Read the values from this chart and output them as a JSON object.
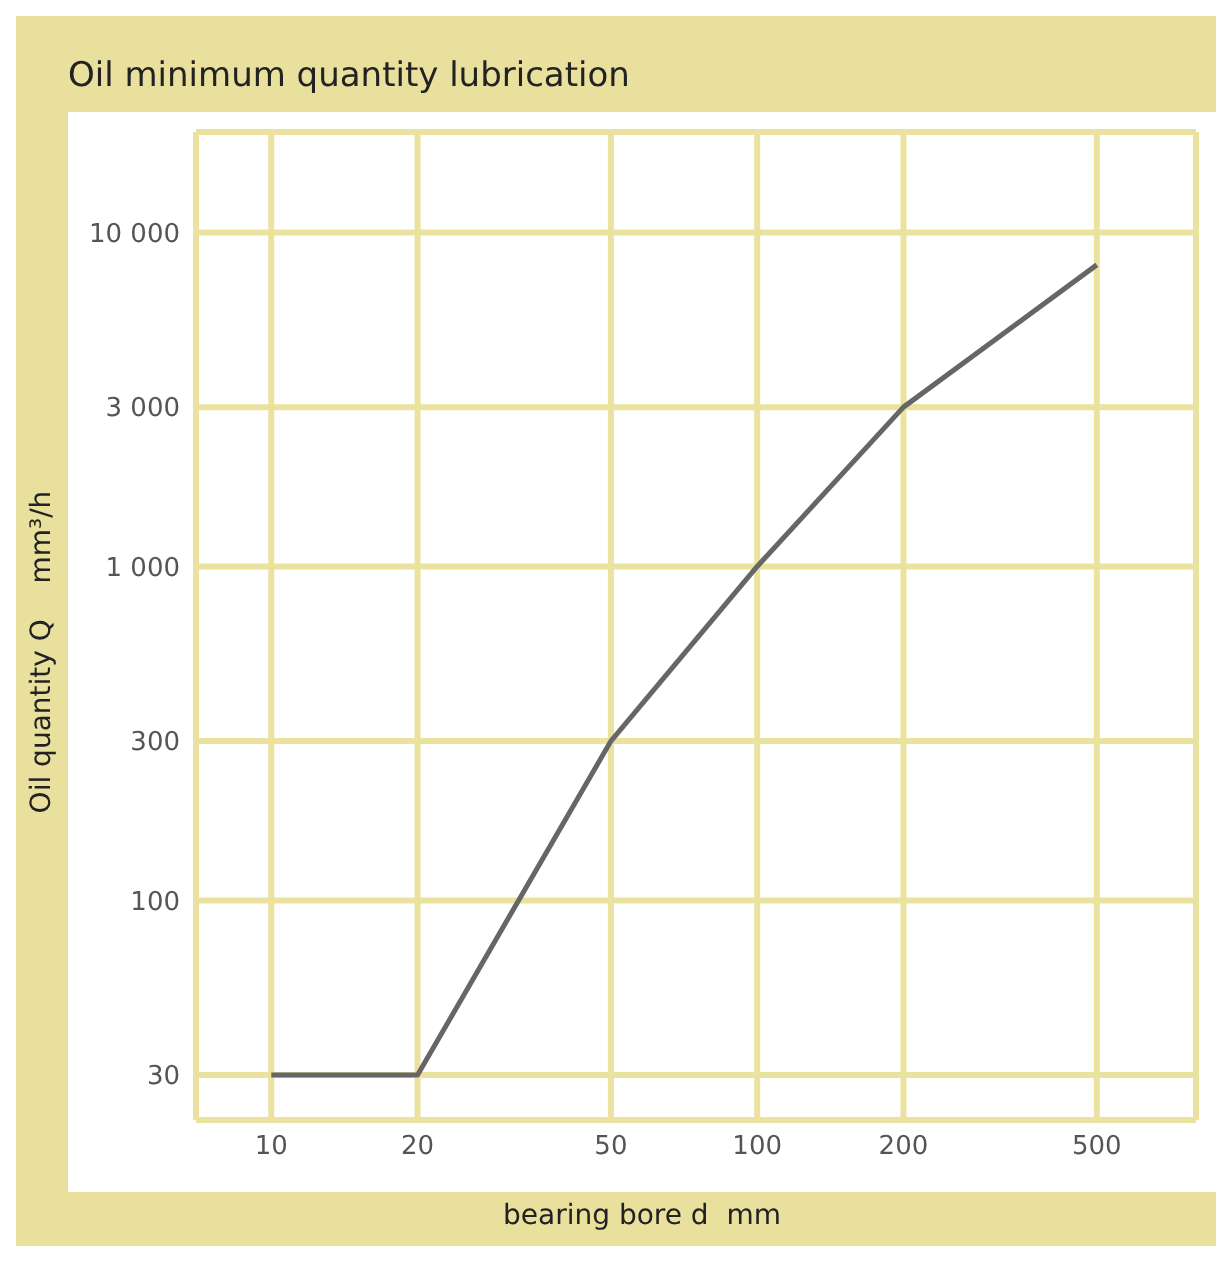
{
  "chart_data": {
    "type": "line",
    "title": "Oil minimum quantity lubrication",
    "xlabel": "bearing bore d  mm",
    "ylabel": "Oil quantity Q    mm³/h",
    "x": [
      10,
      20,
      50,
      100,
      200,
      500
    ],
    "series": [
      {
        "color": "#666666",
        "values": [
          30,
          30,
          300,
          1000,
          3000,
          8000
        ]
      }
    ],
    "log": "xy",
    "xlim": [
      7,
      800
    ],
    "xticks": [
      10,
      20,
      50,
      100,
      200,
      500
    ],
    "ylim": [
      22,
      20000
    ],
    "yticks": [
      30,
      100,
      300,
      {
        "value": 1000,
        "label": "1 000"
      },
      {
        "value": 3000,
        "label": "3 000"
      },
      {
        "value": 10000,
        "label": "10 000"
      }
    ],
    "grid": true,
    "marker": "none",
    "line_style": "solid"
  }
}
